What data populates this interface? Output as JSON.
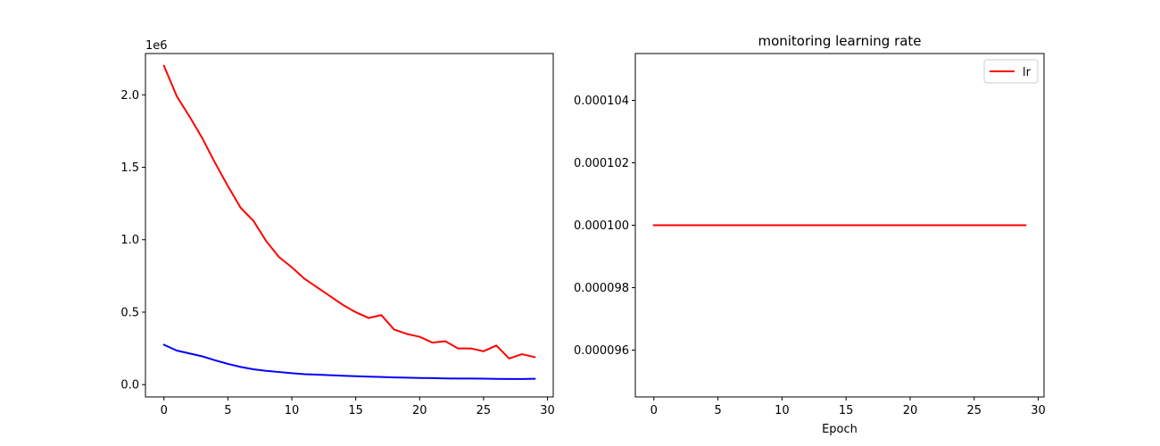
{
  "chart_data": [
    {
      "type": "line",
      "title": "",
      "xlabel": "",
      "ylabel": "",
      "offset_text": "1e6",
      "xlim": [
        -1.45,
        30.45
      ],
      "ylim": [
        -0.085,
        2.285
      ],
      "xticks": [
        0,
        5,
        10,
        15,
        20,
        25,
        30
      ],
      "xtick_labels": [
        "0",
        "5",
        "10",
        "15",
        "20",
        "25",
        "30"
      ],
      "yticks": [
        0.0,
        0.5,
        1.0,
        1.5,
        2.0
      ],
      "ytick_labels": [
        "0.0",
        "0.5",
        "1.0",
        "1.5",
        "2.0"
      ],
      "x": [
        0,
        1,
        2,
        3,
        4,
        5,
        6,
        7,
        8,
        9,
        10,
        11,
        12,
        13,
        14,
        15,
        16,
        17,
        18,
        19,
        20,
        21,
        22,
        23,
        24,
        25,
        26,
        27,
        28,
        29
      ],
      "series": [
        {
          "color": "#ff0000",
          "values": [
            2.2,
            1.99,
            1.85,
            1.7,
            1.53,
            1.37,
            1.22,
            1.13,
            0.99,
            0.88,
            0.81,
            0.73,
            0.67,
            0.61,
            0.55,
            0.5,
            0.46,
            0.48,
            0.38,
            0.35,
            0.33,
            0.29,
            0.3,
            0.25,
            0.25,
            0.23,
            0.27,
            0.18,
            0.21,
            0.19
          ]
        },
        {
          "color": "#0000ff",
          "values": [
            0.275,
            0.235,
            0.215,
            0.195,
            0.168,
            0.143,
            0.122,
            0.106,
            0.095,
            0.087,
            0.079,
            0.072,
            0.069,
            0.065,
            0.061,
            0.058,
            0.055,
            0.053,
            0.05,
            0.048,
            0.046,
            0.045,
            0.043,
            0.042,
            0.042,
            0.041,
            0.04,
            0.039,
            0.039,
            0.04
          ]
        }
      ],
      "legend": "none"
    },
    {
      "type": "line",
      "title": "monitoring learning rate",
      "xlabel": "Epoch",
      "ylabel": "",
      "xlim": [
        -1.45,
        30.45
      ],
      "ylim": [
        9.45e-05,
        0.0001055
      ],
      "xticks": [
        0,
        5,
        10,
        15,
        20,
        25,
        30
      ],
      "xtick_labels": [
        "0",
        "5",
        "10",
        "15",
        "20",
        "25",
        "30"
      ],
      "yticks": [
        9.6e-05,
        9.8e-05,
        0.0001,
        0.000102,
        0.000104
      ],
      "ytick_labels": [
        "0.000096",
        "0.000098",
        "0.000100",
        "0.000102",
        "0.000104"
      ],
      "x": [
        0,
        1,
        2,
        3,
        4,
        5,
        6,
        7,
        8,
        9,
        10,
        11,
        12,
        13,
        14,
        15,
        16,
        17,
        18,
        19,
        20,
        21,
        22,
        23,
        24,
        25,
        26,
        27,
        28,
        29
      ],
      "series": [
        {
          "name": "lr",
          "color": "#ff0000",
          "values": [
            0.0001,
            0.0001,
            0.0001,
            0.0001,
            0.0001,
            0.0001,
            0.0001,
            0.0001,
            0.0001,
            0.0001,
            0.0001,
            0.0001,
            0.0001,
            0.0001,
            0.0001,
            0.0001,
            0.0001,
            0.0001,
            0.0001,
            0.0001,
            0.0001,
            0.0001,
            0.0001,
            0.0001,
            0.0001,
            0.0001,
            0.0001,
            0.0001,
            0.0001,
            0.0001
          ]
        }
      ],
      "legend": "top-right"
    }
  ]
}
